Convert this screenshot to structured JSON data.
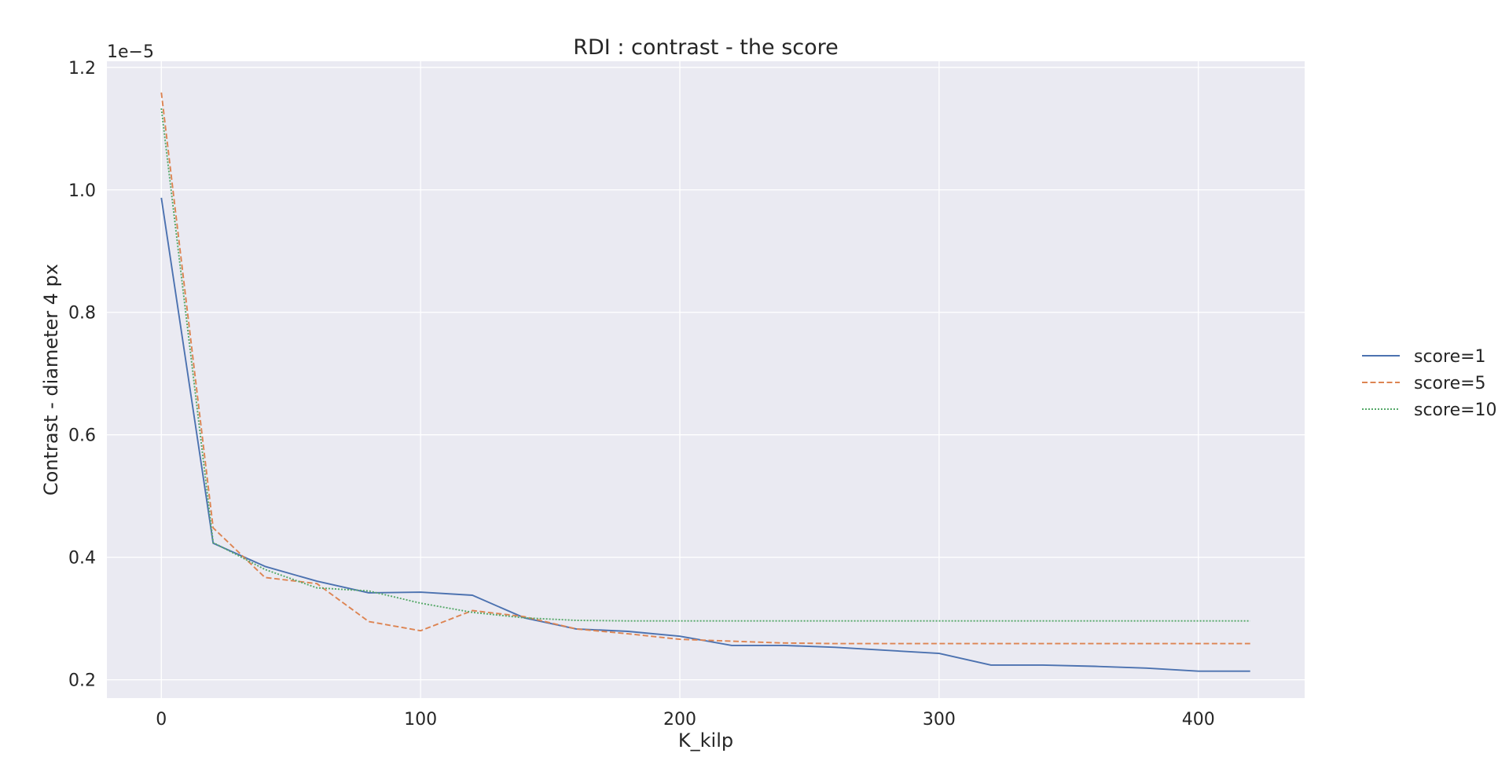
{
  "chart_data": {
    "type": "line",
    "title": "RDI : contrast - the score",
    "xlabel": "K_kilp",
    "ylabel": "Contrast - diameter 4 px",
    "y_offset_label": "1e−5",
    "xlim": [
      -21,
      441
    ],
    "ylim": [
      0.17,
      1.21
    ],
    "x_ticks": [
      0,
      100,
      200,
      300,
      400
    ],
    "x_tick_labels": [
      "0",
      "100",
      "200",
      "300",
      "400"
    ],
    "y_ticks": [
      0.2,
      0.4,
      0.6,
      0.8,
      1.0,
      1.2
    ],
    "y_tick_labels": [
      "0.2",
      "0.4",
      "0.6",
      "0.8",
      "1.0",
      "1.2"
    ],
    "grid": true,
    "background": "#eaeaf2",
    "legend_position": "right",
    "x": [
      0,
      20,
      40,
      60,
      80,
      100,
      120,
      140,
      160,
      180,
      200,
      220,
      240,
      260,
      280,
      300,
      320,
      340,
      360,
      380,
      400,
      420
    ],
    "series": [
      {
        "name": "score=1",
        "color": "#4c72b0",
        "dash": "solid",
        "values": [
          0.987,
          0.423,
          0.385,
          0.361,
          0.342,
          0.343,
          0.338,
          0.301,
          0.283,
          0.279,
          0.271,
          0.256,
          0.256,
          0.253,
          0.248,
          0.243,
          0.224,
          0.224,
          0.222,
          0.219,
          0.214,
          0.214
        ]
      },
      {
        "name": "score=5",
        "color": "#dd8452",
        "dash": "dashed",
        "values": [
          1.159,
          0.448,
          0.367,
          0.357,
          0.295,
          0.28,
          0.313,
          0.303,
          0.283,
          0.275,
          0.266,
          0.263,
          0.26,
          0.259,
          0.259,
          0.259,
          0.259,
          0.259,
          0.259,
          0.259,
          0.259,
          0.259
        ]
      },
      {
        "name": "score=10",
        "color": "#55a868",
        "dash": "dotted",
        "values": [
          1.133,
          0.424,
          0.38,
          0.35,
          0.345,
          0.325,
          0.31,
          0.301,
          0.297,
          0.296,
          0.296,
          0.296,
          0.296,
          0.296,
          0.296,
          0.296,
          0.296,
          0.296,
          0.296,
          0.296,
          0.296,
          0.296
        ]
      }
    ]
  }
}
